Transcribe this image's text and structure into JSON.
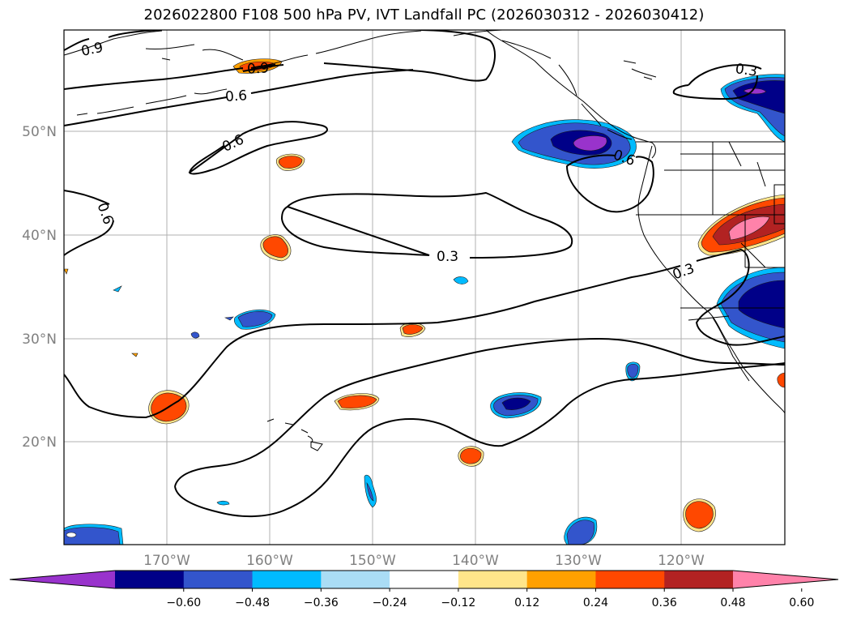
{
  "title": "2026022800 F108 500 hPa PV, IVT Landfall PC (2026030312 - 2026030412)",
  "lat_labels": [
    "50°N",
    "40°N",
    "30°N",
    "20°N"
  ],
  "lon_labels": [
    "170°W",
    "160°W",
    "150°W",
    "140°W",
    "130°W",
    "120°W"
  ],
  "contour_labels": [
    "0.9",
    "0.9",
    "0.6",
    "0.6",
    "0.6",
    "0.6",
    "0.3",
    "0.3",
    "0.3"
  ],
  "colorbar": {
    "ticks": [
      "−0.60",
      "−0.48",
      "−0.36",
      "−0.24",
      "−0.12",
      "0.12",
      "0.24",
      "0.36",
      "0.48",
      "0.60"
    ],
    "colors": [
      "#9933cc",
      "#000088",
      "#3355cc",
      "#00bbff",
      "#aaddf5",
      "#ffffff",
      "#ffe58a",
      "#ffa000",
      "#ff4800",
      "#b22222",
      "#ff82aa"
    ]
  },
  "colors": {
    "gridline": "#b0b0b0",
    "axis_label": "#808080",
    "contour": "#000000"
  }
}
